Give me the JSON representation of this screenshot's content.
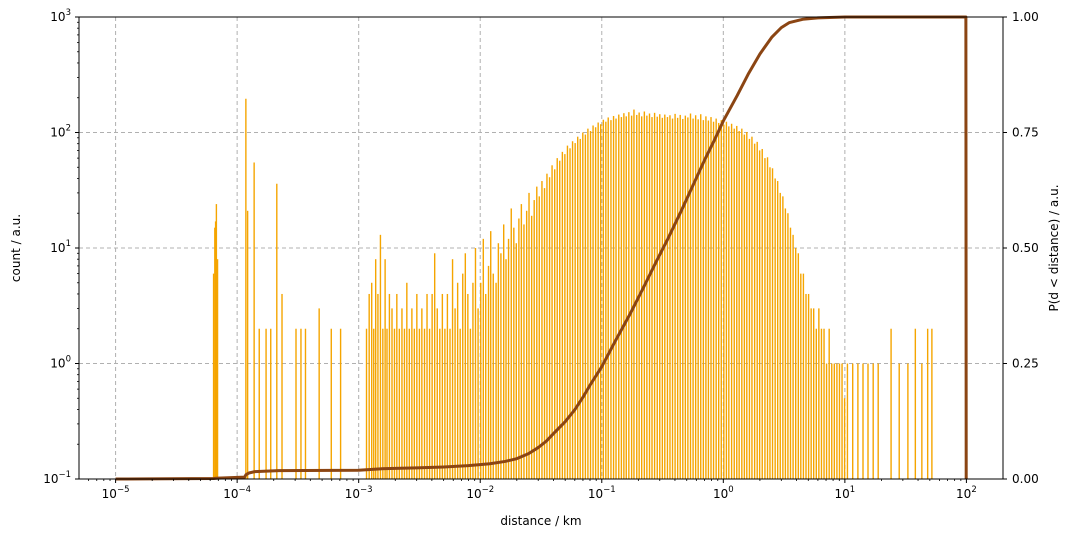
{
  "chart_data": {
    "type": "bar",
    "xlabel": "distance / km",
    "ylabel": "count / a.u.",
    "y2label": "P(d < distance) / a.u.",
    "xscale": "log",
    "yscale": "log",
    "xlim": [
      5e-06,
      200
    ],
    "ylim": [
      0.1,
      1000
    ],
    "y2lim": [
      0,
      1
    ],
    "grid": true,
    "x_ticks": [
      {
        "base": "10",
        "exp": "−5",
        "value": 1e-05
      },
      {
        "base": "10",
        "exp": "−4",
        "value": 0.0001
      },
      {
        "base": "10",
        "exp": "−3",
        "value": 0.001
      },
      {
        "base": "10",
        "exp": "−2",
        "value": 0.01
      },
      {
        "base": "10",
        "exp": "−1",
        "value": 0.1
      },
      {
        "base": "10",
        "exp": "0",
        "value": 1
      },
      {
        "base": "10",
        "exp": "1",
        "value": 10
      },
      {
        "base": "10",
        "exp": "2",
        "value": 100
      }
    ],
    "y_ticks": [
      {
        "base": "10",
        "exp": "−1",
        "value": 0.1
      },
      {
        "base": "10",
        "exp": "0",
        "value": 1
      },
      {
        "base": "10",
        "exp": "1",
        "value": 10
      },
      {
        "base": "10",
        "exp": "2",
        "value": 100
      },
      {
        "base": "10",
        "exp": "3",
        "value": 1000
      }
    ],
    "y2_ticks": [
      {
        "label": "0.00",
        "value": 0
      },
      {
        "label": "0.25",
        "value": 0.25
      },
      {
        "label": "0.50",
        "value": 0.5
      },
      {
        "label": "0.75",
        "value": 0.75
      },
      {
        "label": "1.00",
        "value": 1
      }
    ],
    "colors": {
      "histogram": "#f5a500",
      "cdf": "#8b4513",
      "grid": "#b0b0b0"
    },
    "series": [
      {
        "type": "histogram",
        "bins": [
          [
            6.4e-05,
            6
          ],
          [
            6.55e-05,
            15
          ],
          [
            6.65e-05,
            17
          ],
          [
            6.75e-05,
            24
          ],
          [
            6.9e-05,
            8
          ],
          [
            0.000118,
            196
          ],
          [
            0.000122,
            21
          ],
          [
            0.000138,
            55
          ],
          [
            0.000152,
            2
          ],
          [
            0.000173,
            2
          ],
          [
            0.000189,
            2
          ],
          [
            0.000212,
            36
          ],
          [
            0.000234,
            4
          ],
          [
            0.000305,
            2
          ],
          [
            0.000335,
            2
          ],
          [
            0.000365,
            2
          ],
          [
            0.000473,
            3
          ],
          [
            0.000595,
            2
          ],
          [
            0.00071,
            2
          ],
          [
            0.00116,
            2
          ],
          [
            0.00122,
            4
          ],
          [
            0.00128,
            5
          ],
          [
            0.00133,
            2
          ],
          [
            0.00138,
            8
          ],
          [
            0.00144,
            4
          ],
          [
            0.00151,
            13
          ],
          [
            0.00158,
            2
          ],
          [
            0.00165,
            8
          ],
          [
            0.00171,
            2
          ],
          [
            0.00179,
            4
          ],
          [
            0.00188,
            3
          ],
          [
            0.00197,
            2
          ],
          [
            0.00206,
            4
          ],
          [
            0.00216,
            2
          ],
          [
            0.00227,
            3
          ],
          [
            0.00238,
            2
          ],
          [
            0.00249,
            5
          ],
          [
            0.00261,
            2
          ],
          [
            0.00274,
            3
          ],
          [
            0.00287,
            2
          ],
          [
            0.00301,
            4
          ],
          [
            0.00316,
            2
          ],
          [
            0.00331,
            3
          ],
          [
            0.00348,
            2
          ],
          [
            0.00365,
            4
          ],
          [
            0.00383,
            2
          ],
          [
            0.00402,
            4
          ],
          [
            0.00422,
            9
          ],
          [
            0.00443,
            3
          ],
          [
            0.00465,
            2
          ],
          [
            0.00488,
            4
          ],
          [
            0.00512,
            2
          ],
          [
            0.00537,
            4
          ],
          [
            0.00564,
            2
          ],
          [
            0.00592,
            8
          ],
          [
            0.00621,
            3
          ],
          [
            0.00652,
            5
          ],
          [
            0.00684,
            2
          ],
          [
            0.00718,
            6
          ],
          [
            0.00754,
            9
          ],
          [
            0.00791,
            4
          ],
          [
            0.0083,
            2
          ],
          [
            0.00871,
            5
          ],
          [
            0.00914,
            10
          ],
          [
            0.0096,
            3
          ],
          [
            0.0101,
            5
          ],
          [
            0.0106,
            12
          ],
          [
            0.0111,
            4
          ],
          [
            0.0117,
            7
          ],
          [
            0.0122,
            14
          ],
          [
            0.0128,
            6
          ],
          [
            0.0135,
            5
          ],
          [
            0.0141,
            11
          ],
          [
            0.0148,
            9
          ],
          [
            0.0156,
            16
          ],
          [
            0.0163,
            8
          ],
          [
            0.0171,
            12
          ],
          [
            0.018,
            22
          ],
          [
            0.0189,
            15
          ],
          [
            0.0198,
            11
          ],
          [
            0.0208,
            18
          ],
          [
            0.0218,
            24
          ],
          [
            0.0229,
            16
          ],
          [
            0.0241,
            21
          ],
          [
            0.0252,
            30
          ],
          [
            0.0265,
            19
          ],
          [
            0.0278,
            26
          ],
          [
            0.0292,
            34
          ],
          [
            0.0306,
            28
          ],
          [
            0.0322,
            38
          ],
          [
            0.0338,
            33
          ],
          [
            0.0354,
            44
          ],
          [
            0.0372,
            41
          ],
          [
            0.039,
            52
          ],
          [
            0.041,
            48
          ],
          [
            0.043,
            60
          ],
          [
            0.0451,
            57
          ],
          [
            0.0474,
            68
          ],
          [
            0.0497,
            65
          ],
          [
            0.0522,
            77
          ],
          [
            0.0548,
            73
          ],
          [
            0.0575,
            84
          ],
          [
            0.0604,
            81
          ],
          [
            0.0634,
            92
          ],
          [
            0.0665,
            88
          ],
          [
            0.0698,
            100
          ],
          [
            0.0733,
            96
          ],
          [
            0.0769,
            108
          ],
          [
            0.0808,
            103
          ],
          [
            0.0848,
            115
          ],
          [
            0.089,
            111
          ],
          [
            0.0934,
            122
          ],
          [
            0.098,
            118
          ],
          [
            0.103,
            129
          ],
          [
            0.108,
            124
          ],
          [
            0.113,
            135
          ],
          [
            0.119,
            128
          ],
          [
            0.125,
            139
          ],
          [
            0.131,
            132
          ],
          [
            0.138,
            143
          ],
          [
            0.145,
            136
          ],
          [
            0.152,
            147
          ],
          [
            0.159,
            138
          ],
          [
            0.167,
            150
          ],
          [
            0.176,
            140
          ],
          [
            0.184,
            158
          ],
          [
            0.194,
            142
          ],
          [
            0.203,
            149
          ],
          [
            0.213,
            138
          ],
          [
            0.224,
            152
          ],
          [
            0.235,
            140
          ],
          [
            0.247,
            146
          ],
          [
            0.259,
            136
          ],
          [
            0.272,
            148
          ],
          [
            0.286,
            137
          ],
          [
            0.3,
            144
          ],
          [
            0.315,
            134
          ],
          [
            0.33,
            143
          ],
          [
            0.347,
            136
          ],
          [
            0.364,
            141
          ],
          [
            0.382,
            132
          ],
          [
            0.401,
            145
          ],
          [
            0.421,
            134
          ],
          [
            0.442,
            142
          ],
          [
            0.464,
            131
          ],
          [
            0.487,
            140
          ],
          [
            0.511,
            135
          ],
          [
            0.537,
            146
          ],
          [
            0.564,
            132
          ],
          [
            0.592,
            141
          ],
          [
            0.621,
            130
          ],
          [
            0.652,
            144
          ],
          [
            0.685,
            128
          ],
          [
            0.719,
            138
          ],
          [
            0.754,
            127
          ],
          [
            0.792,
            136
          ],
          [
            0.831,
            124
          ],
          [
            0.873,
            132
          ],
          [
            0.916,
            121
          ],
          [
            0.962,
            128
          ],
          [
            1.01,
            117
          ],
          [
            1.06,
            124
          ],
          [
            1.11,
            113
          ],
          [
            1.17,
            119
          ],
          [
            1.23,
            108
          ],
          [
            1.29,
            114
          ],
          [
            1.35,
            103
          ],
          [
            1.42,
            108
          ],
          [
            1.49,
            96
          ],
          [
            1.56,
            101
          ],
          [
            1.64,
            88
          ],
          [
            1.72,
            92
          ],
          [
            1.81,
            80
          ],
          [
            1.9,
            83
          ],
          [
            1.99,
            70
          ],
          [
            2.09,
            72
          ],
          [
            2.2,
            60
          ],
          [
            2.31,
            61
          ],
          [
            2.42,
            50
          ],
          [
            2.54,
            49
          ],
          [
            2.67,
            40
          ],
          [
            2.8,
            38
          ],
          [
            2.94,
            30
          ],
          [
            3.09,
            28
          ],
          [
            3.24,
            22
          ],
          [
            3.4,
            20
          ],
          [
            3.57,
            15
          ],
          [
            3.75,
            13
          ],
          [
            3.94,
            10
          ],
          [
            4.14,
            9
          ],
          [
            4.34,
            6
          ],
          [
            4.56,
            6
          ],
          [
            4.79,
            4
          ],
          [
            5.03,
            4
          ],
          [
            5.28,
            3
          ],
          [
            5.54,
            3
          ],
          [
            5.82,
            2
          ],
          [
            6.11,
            3
          ],
          [
            6.42,
            2
          ],
          [
            6.74,
            2
          ],
          [
            7.07,
            1
          ],
          [
            7.43,
            2
          ],
          [
            7.8,
            1
          ],
          [
            8.19,
            1
          ],
          [
            8.6,
            1
          ],
          [
            9.03,
            1
          ],
          [
            9.48,
            1
          ],
          [
            9.95,
            0.5
          ],
          [
            10.5,
            1
          ],
          [
            11.6,
            1
          ],
          [
            12.8,
            1
          ],
          [
            14.1,
            1
          ],
          [
            15.5,
            1
          ],
          [
            17.1,
            1
          ],
          [
            18.8,
            1
          ],
          [
            24,
            2
          ],
          [
            28,
            1
          ],
          [
            33,
            1
          ],
          [
            38,
            2
          ],
          [
            43,
            1
          ],
          [
            48,
            2
          ],
          [
            52,
            2
          ]
        ]
      },
      {
        "type": "cdf",
        "points": [
          [
            1e-05,
            0.0
          ],
          [
            6.4e-05,
            0.001
          ],
          [
            7e-05,
            0.002
          ],
          [
            0.000115,
            0.004
          ],
          [
            0.000118,
            0.009
          ],
          [
            0.000125,
            0.013
          ],
          [
            0.00014,
            0.016
          ],
          [
            0.00022,
            0.018
          ],
          [
            0.001,
            0.019
          ],
          [
            0.0015,
            0.022
          ],
          [
            0.002,
            0.023
          ],
          [
            0.003,
            0.024
          ],
          [
            0.005,
            0.026
          ],
          [
            0.008,
            0.029
          ],
          [
            0.012,
            0.033
          ],
          [
            0.016,
            0.038
          ],
          [
            0.02,
            0.044
          ],
          [
            0.025,
            0.055
          ],
          [
            0.03,
            0.068
          ],
          [
            0.035,
            0.082
          ],
          [
            0.04,
            0.098
          ],
          [
            0.05,
            0.124
          ],
          [
            0.06,
            0.15
          ],
          [
            0.07,
            0.177
          ],
          [
            0.08,
            0.203
          ],
          [
            0.1,
            0.243
          ],
          [
            0.13,
            0.3
          ],
          [
            0.17,
            0.356
          ],
          [
            0.22,
            0.414
          ],
          [
            0.28,
            0.47
          ],
          [
            0.35,
            0.52
          ],
          [
            0.45,
            0.58
          ],
          [
            0.55,
            0.63
          ],
          [
            0.7,
            0.69
          ],
          [
            0.85,
            0.735
          ],
          [
            1.0,
            0.775
          ],
          [
            1.3,
            0.83
          ],
          [
            1.6,
            0.876
          ],
          [
            2.0,
            0.92
          ],
          [
            2.5,
            0.956
          ],
          [
            3.0,
            0.977
          ],
          [
            3.5,
            0.988
          ],
          [
            4.5,
            0.995
          ],
          [
            6,
            0.998
          ],
          [
            10,
            1.0
          ],
          [
            99,
            1.0
          ],
          [
            99.6,
            0.0
          ]
        ]
      }
    ]
  }
}
